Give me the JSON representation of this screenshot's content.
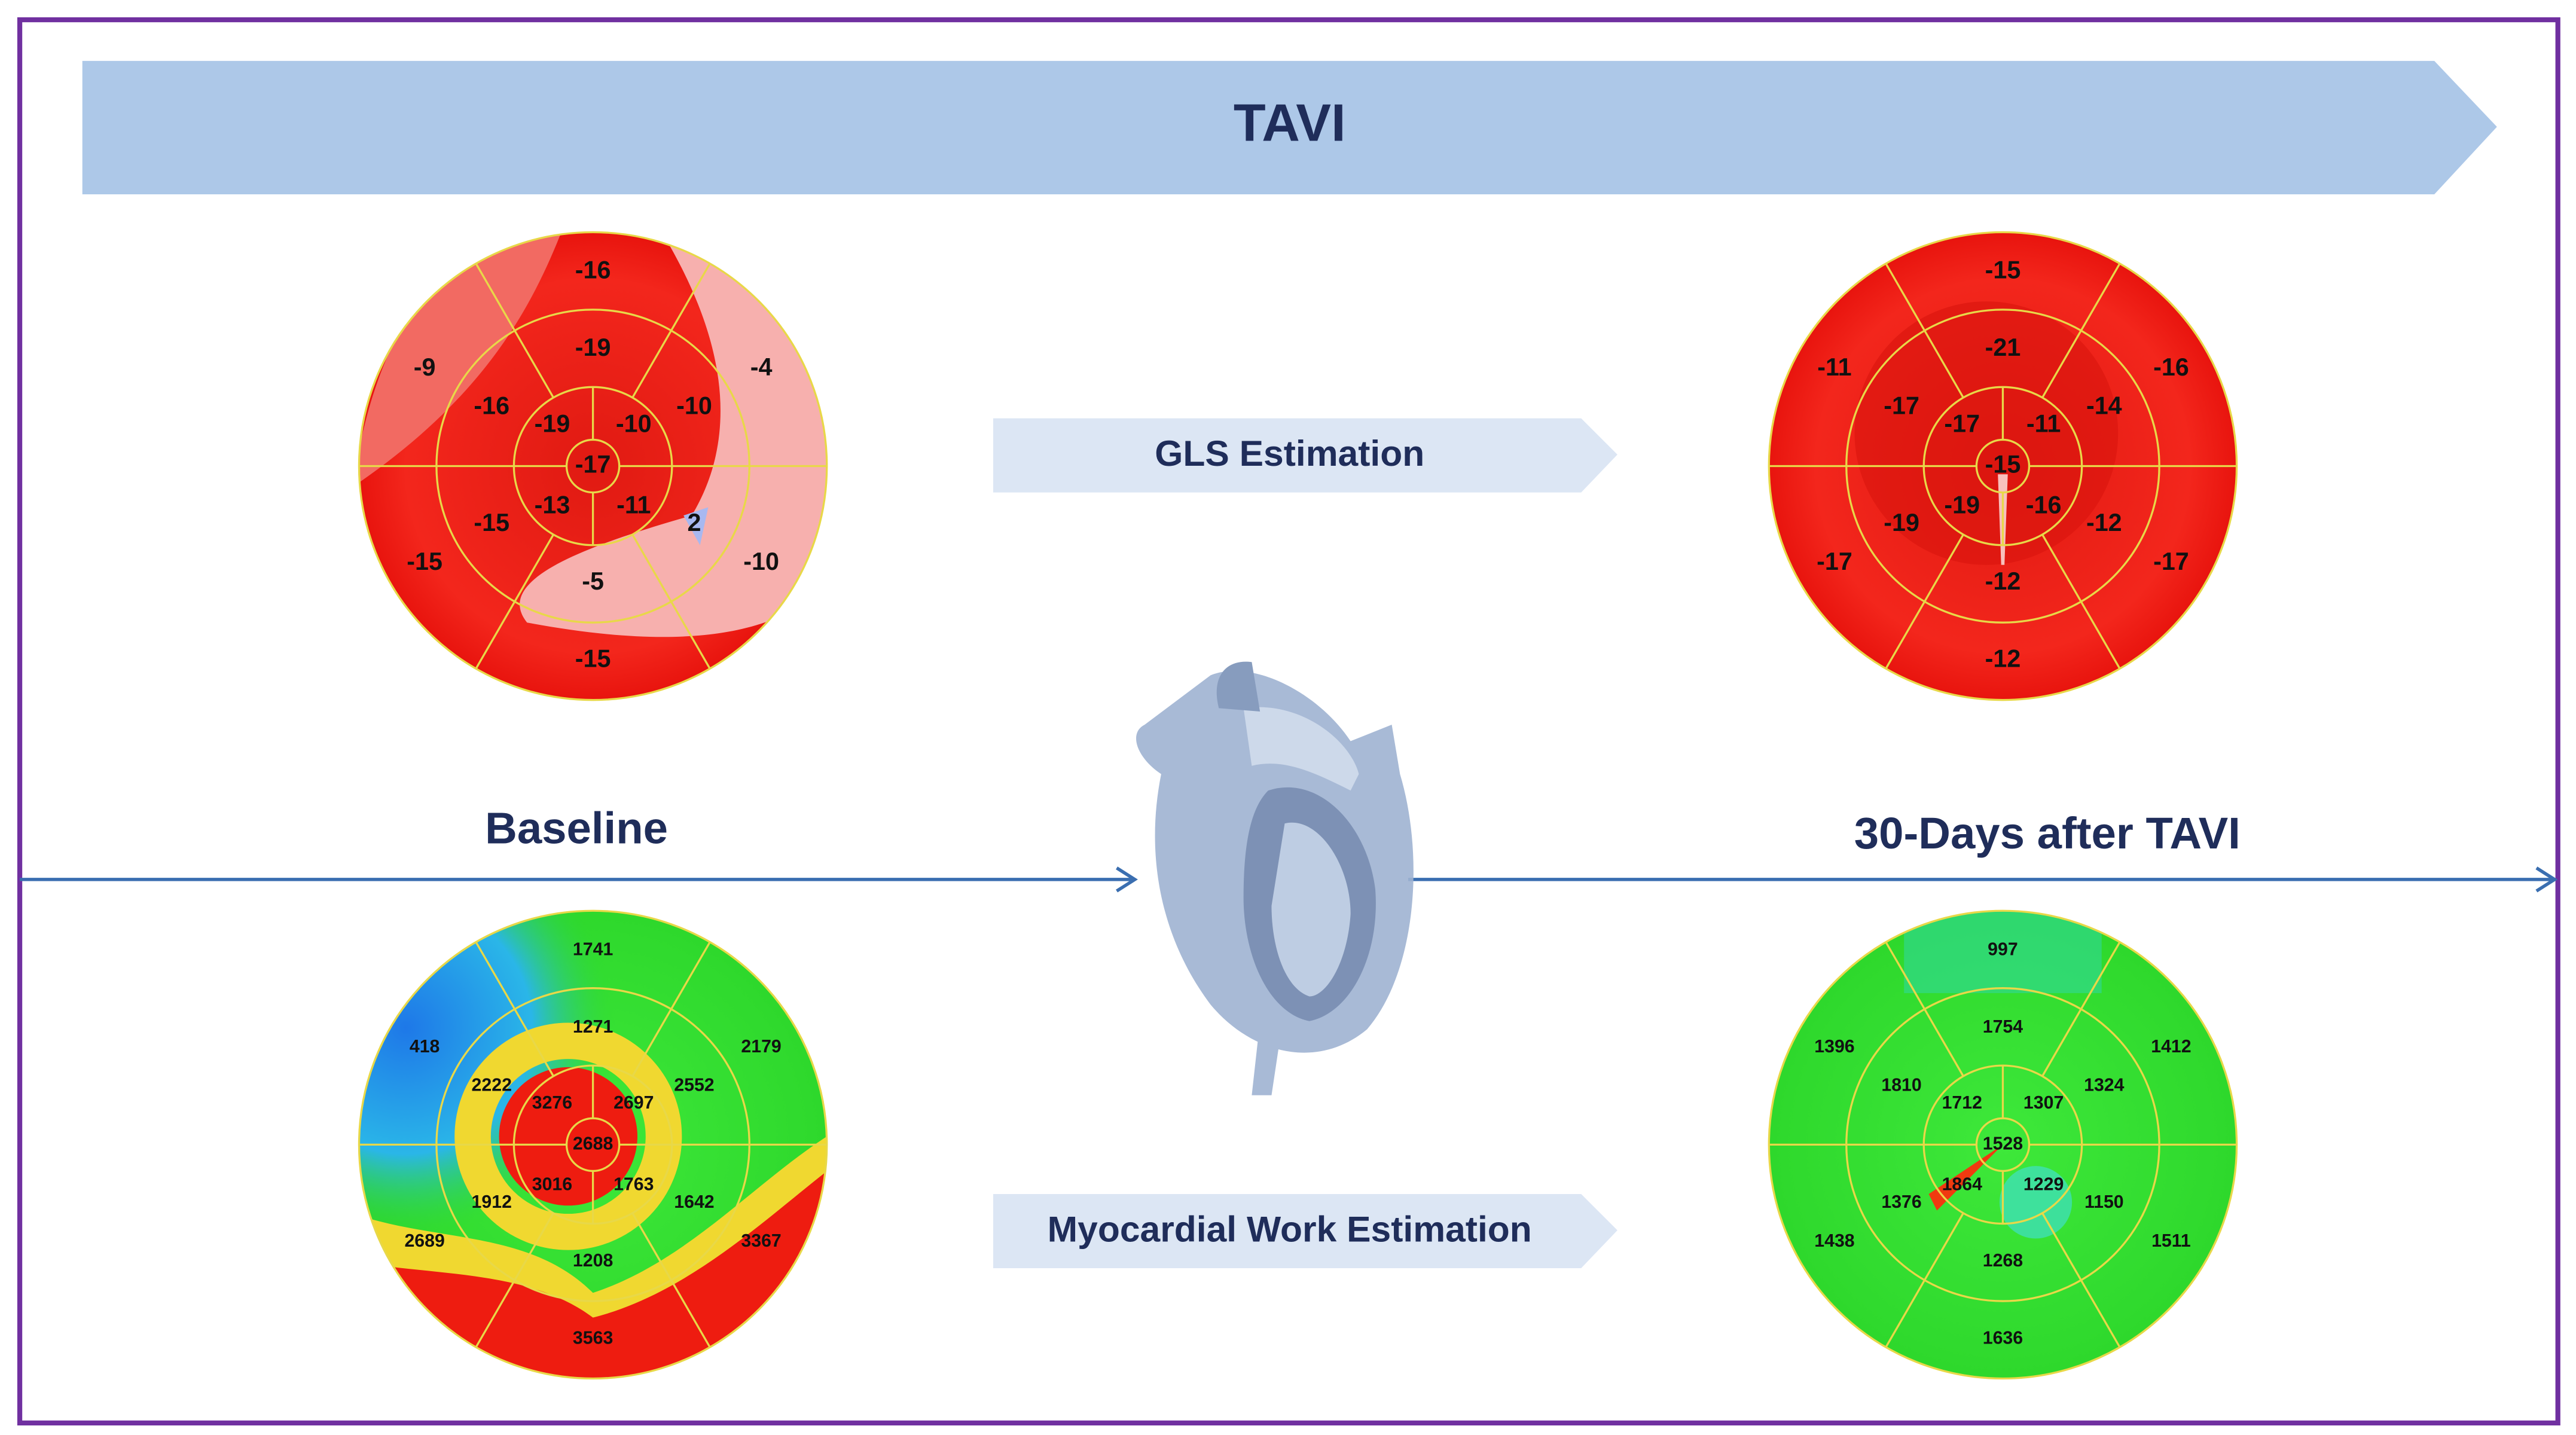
{
  "banner": "TAVI",
  "gls_label": "GLS Estimation",
  "mw_label": "Myocardial Work Estimation",
  "baseline_label": "Baseline",
  "after_label": "30-Days after TAVI",
  "bullseyes": [
    {
      "basal": [
        -16,
        -4,
        -10,
        -15,
        -15,
        -9
      ],
      "mid": [
        -19,
        -10,
        2,
        -5,
        -15,
        -16
      ],
      "apical": [
        -19,
        -10,
        -11,
        -13
      ],
      "apex": -17
    },
    {
      "basal": [
        -15,
        -16,
        -17,
        -12,
        -17,
        -11
      ],
      "mid": [
        -21,
        -14,
        -12,
        -12,
        -19,
        -17
      ],
      "apical": [
        -17,
        -11,
        -16,
        -19
      ],
      "apex": -15
    },
    {
      "basal": [
        1741,
        2179,
        3367,
        3563,
        2689,
        418
      ],
      "mid": [
        1271,
        2552,
        1642,
        1208,
        1912,
        2222
      ],
      "apical": [
        3276,
        2697,
        1763,
        3016
      ],
      "apex": 2688
    },
    {
      "basal": [
        997,
        1412,
        1511,
        1636,
        1438,
        1396
      ],
      "mid": [
        1754,
        1324,
        1150,
        1268,
        1376,
        1810
      ],
      "apical": [
        1712,
        1307,
        1229,
        1864
      ],
      "apex": 1528
    }
  ]
}
